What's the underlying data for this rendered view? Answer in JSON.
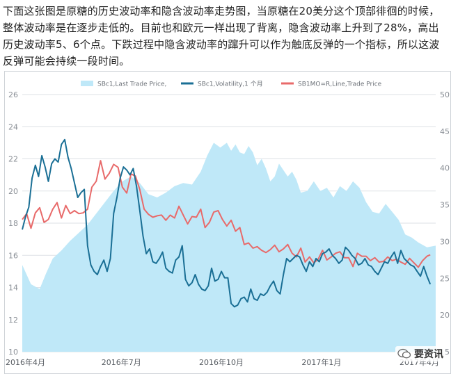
{
  "article": {
    "text": "下面这张图是原糖的历史波动率和隐含波动率走势图，当原糖在20美分这个顶部徘徊的时候，整体波动率是在逐步走低的。目前也和欧元一样出现了背离，隐含波动率上升到了28%，高出历史波动率5、6个点。下跌过程中隐含波动率的蹿升可以作为触底反弹的一个指标，所以这波反弹可能会持续一段时间。"
  },
  "colors": {
    "area": "#bfe8f8",
    "volatility": "#1a6f95",
    "implied": "#e86a6a",
    "grid": "#dde1e6",
    "axis_text": "#8a8f96",
    "frame": "#cfd3d8"
  },
  "watermark": {
    "text": "要资讯",
    "icon": "chat-bubble-icon"
  },
  "chart_data": {
    "type": "line",
    "legend": [
      {
        "key": "price",
        "label": "SBc1,Last Trade Price,",
        "style": "area"
      },
      {
        "key": "vol",
        "label": "SBc1,Volatility,1 个月",
        "style": "line"
      },
      {
        "key": "iv",
        "label": "SB1MO=R,Line,Trade Price",
        "style": "line"
      }
    ],
    "legend_position": "top",
    "x_ticks": [
      {
        "label": "2016年4月",
        "t": 0
      },
      {
        "label": "2016年7月",
        "t": 91
      },
      {
        "label": "2016年10月",
        "t": 183
      },
      {
        "label": "2017年1月",
        "t": 275
      },
      {
        "label": "2017年4月",
        "t": 365
      }
    ],
    "x_range": [
      0,
      380
    ],
    "y_left": {
      "ticks": [
        10,
        12,
        14,
        16,
        18,
        20,
        22,
        24,
        26
      ],
      "range": [
        10,
        26
      ]
    },
    "y_right": {
      "ticks": [
        15,
        20,
        25,
        30,
        35,
        40,
        45,
        50
      ],
      "range": [
        15,
        50
      ]
    },
    "grid": true,
    "price": {
      "axis": "left",
      "t": [
        0,
        8,
        16,
        22,
        28,
        36,
        44,
        52,
        60,
        68,
        76,
        84,
        92,
        100,
        108,
        116,
        124,
        132,
        140,
        148,
        156,
        164,
        170,
        176,
        182,
        188,
        192,
        196,
        200,
        204,
        208,
        212,
        216,
        220,
        224,
        228,
        232,
        236,
        240,
        244,
        248,
        252,
        256,
        262,
        268,
        274,
        280,
        286,
        292,
        298,
        304,
        310,
        316,
        322,
        328,
        334,
        340,
        346,
        352,
        358,
        364,
        372,
        380
      ],
      "v": [
        15.4,
        14.2,
        13.9,
        14.9,
        15.8,
        16.3,
        16.9,
        17.4,
        17.9,
        18.6,
        19.3,
        20.0,
        20.6,
        20.9,
        20.5,
        19.8,
        19.6,
        19.9,
        20.3,
        20.5,
        20.4,
        21.2,
        22.2,
        23.0,
        22.7,
        23.0,
        22.5,
        22.9,
        22.4,
        22.3,
        22.8,
        22.4,
        21.6,
        22.0,
        21.4,
        20.6,
        20.9,
        21.7,
        21.3,
        20.9,
        21.2,
        20.7,
        19.9,
        20.0,
        20.6,
        20.0,
        20.2,
        19.6,
        20.3,
        20.0,
        20.6,
        20.2,
        19.3,
        18.7,
        18.6,
        19.2,
        18.7,
        18.2,
        17.3,
        17.1,
        16.8,
        16.5,
        16.6
      ]
    },
    "vol": {
      "axis": "left",
      "t": [
        0,
        3,
        6,
        9,
        12,
        15,
        18,
        21,
        24,
        27,
        30,
        33,
        36,
        39,
        42,
        45,
        48,
        51,
        54,
        57,
        60,
        63,
        66,
        69,
        72,
        75,
        78,
        81,
        84,
        87,
        90,
        93,
        96,
        99,
        102,
        105,
        108,
        111,
        114,
        117,
        120,
        123,
        126,
        129,
        132,
        135,
        138,
        141,
        144,
        147,
        150,
        153,
        156,
        159,
        162,
        165,
        168,
        171,
        174,
        177,
        180,
        183,
        186,
        189,
        192,
        195,
        198,
        201,
        204,
        207,
        210,
        213,
        216,
        219,
        222,
        225,
        228,
        231,
        234,
        237,
        240,
        243,
        246,
        249,
        252,
        255,
        258,
        261,
        264,
        267,
        270,
        273,
        276,
        279,
        282,
        285,
        288,
        291,
        294,
        297,
        300,
        303,
        306,
        309,
        312,
        315,
        318,
        321,
        324,
        327,
        330,
        333,
        336,
        339,
        342,
        345,
        348,
        351,
        354,
        357,
        360,
        363,
        366,
        369,
        372,
        375
      ],
      "v": [
        17.6,
        18.4,
        19.0,
        20.8,
        21.6,
        20.9,
        22.2,
        21.5,
        20.6,
        21.7,
        22.0,
        21.8,
        22.9,
        23.2,
        22.1,
        21.4,
        20.5,
        19.6,
        19.9,
        20.1,
        16.6,
        15.4,
        15.0,
        14.8,
        15.3,
        15.7,
        15.0,
        15.8,
        18.6,
        19.6,
        20.8,
        21.5,
        21.3,
        21.0,
        21.4,
        20.3,
        18.8,
        17.2,
        16.1,
        16.4,
        15.6,
        15.5,
        15.8,
        16.2,
        15.2,
        15.0,
        14.9,
        15.7,
        15.9,
        16.6,
        14.5,
        14.1,
        14.3,
        14.8,
        14.2,
        13.9,
        13.8,
        14.1,
        15.2,
        14.4,
        14.5,
        15.0,
        14.6,
        14.6,
        13.0,
        12.8,
        12.9,
        13.3,
        13.4,
        13.1,
        13.9,
        13.3,
        13.2,
        13.6,
        13.5,
        13.7,
        14.1,
        14.4,
        13.8,
        13.6,
        14.8,
        15.8,
        15.6,
        15.8,
        16.0,
        15.9,
        15.4,
        15.0,
        15.6,
        15.3,
        15.8,
        15.6,
        16.1,
        16.2,
        16.4,
        16.0,
        15.8,
        15.5,
        15.7,
        16.5,
        16.3,
        16.0,
        15.8,
        15.4,
        15.5,
        15.8,
        15.4,
        15.3,
        15.0,
        14.8,
        15.2,
        15.6,
        15.5,
        15.9,
        16.2,
        15.5,
        16.3,
        15.8,
        15.6,
        15.4,
        15.3,
        15.0,
        14.7,
        15.3,
        14.7,
        14.2
      ]
    },
    "iv": {
      "axis": "right",
      "t": [
        0,
        4,
        8,
        12,
        16,
        20,
        24,
        28,
        32,
        36,
        40,
        44,
        48,
        52,
        56,
        60,
        64,
        68,
        72,
        76,
        80,
        84,
        88,
        92,
        96,
        100,
        104,
        108,
        112,
        116,
        120,
        124,
        128,
        132,
        136,
        140,
        144,
        148,
        152,
        156,
        160,
        164,
        168,
        172,
        176,
        180,
        184,
        188,
        192,
        196,
        200,
        204,
        208,
        212,
        216,
        220,
        224,
        228,
        232,
        236,
        240,
        244,
        248,
        252,
        256,
        260,
        264,
        268,
        272,
        276,
        280,
        284,
        288,
        292,
        296,
        300,
        304,
        308,
        312,
        316,
        320,
        324,
        328,
        332,
        336,
        340,
        344,
        348,
        352,
        356,
        360,
        364,
        368,
        372,
        375
      ],
      "v": [
        33.0,
        33.8,
        31.8,
        33.9,
        34.6,
        32.6,
        33.0,
        34.4,
        35.3,
        33.2,
        34.9,
        33.8,
        34.2,
        33.8,
        33.9,
        34.4,
        37.4,
        38.2,
        41.0,
        38.5,
        39.3,
        40.5,
        40.1,
        37.4,
        36.6,
        39.2,
        38.9,
        37.1,
        34.4,
        33.7,
        33.3,
        33.5,
        33.6,
        32.9,
        33.6,
        33.2,
        34.8,
        33.6,
        32.4,
        33.4,
        33.3,
        34.4,
        31.9,
        32.6,
        34.0,
        34.2,
        33.0,
        32.1,
        32.9,
        31.4,
        31.9,
        29.6,
        29.8,
        29.1,
        29.3,
        28.8,
        28.5,
        28.9,
        29.5,
        28.6,
        29.0,
        29.6,
        28.4,
        27.9,
        29.1,
        27.2,
        27.9,
        27.1,
        27.6,
        28.8,
        27.5,
        27.9,
        28.4,
        28.6,
        27.8,
        27.8,
        26.6,
        28.4,
        28.0,
        28.0,
        27.4,
        27.8,
        27.2,
        27.3,
        27.9,
        27.4,
        27.6,
        27.2,
        26.9,
        27.7,
        27.1,
        26.5,
        27.4,
        28.0,
        28.2
      ]
    }
  }
}
